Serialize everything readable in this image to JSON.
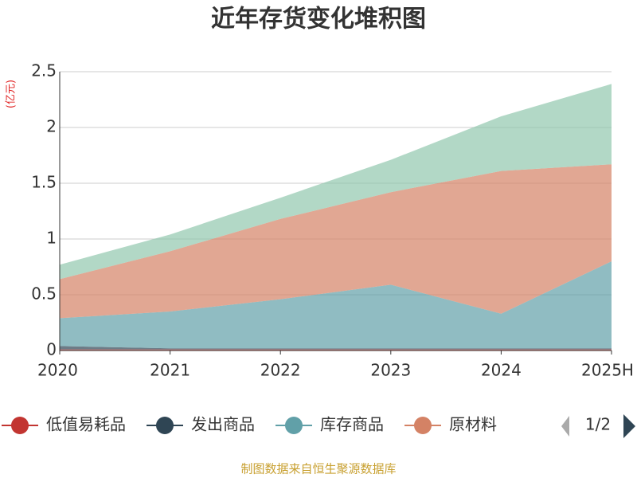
{
  "chart_data": {
    "type": "stacked_area",
    "title": "近年存货变化堆积图",
    "y_unit": "(亿元)",
    "categories": [
      "2020",
      "2021",
      "2022",
      "2023",
      "2024",
      "2025H"
    ],
    "series": [
      {
        "name": "低值易耗品",
        "color": "#c23531",
        "values": [
          0.01,
          0.01,
          0.01,
          0.01,
          0.01,
          0.01
        ]
      },
      {
        "name": "发出商品",
        "color": "#2f4554",
        "values": [
          0.03,
          0.01,
          0.01,
          0.01,
          0.01,
          0.01
        ]
      },
      {
        "name": "库存商品",
        "color": "#61a0a8",
        "values": [
          0.25,
          0.33,
          0.44,
          0.57,
          0.31,
          0.78
        ]
      },
      {
        "name": "原材料",
        "color": "#d48265",
        "values": [
          0.35,
          0.54,
          0.72,
          0.83,
          1.28,
          0.87
        ]
      },
      {
        "color": "#91c7ae",
        "values": [
          0.13,
          0.15,
          0.19,
          0.29,
          0.49,
          0.72
        ]
      }
    ],
    "ylim": [
      0,
      2.5
    ],
    "yticks": [
      0,
      0.5,
      1,
      1.5,
      2,
      2.5
    ],
    "grid": true,
    "legend_page": "1/2",
    "source": "制图数据来自恒生聚源数据库"
  }
}
